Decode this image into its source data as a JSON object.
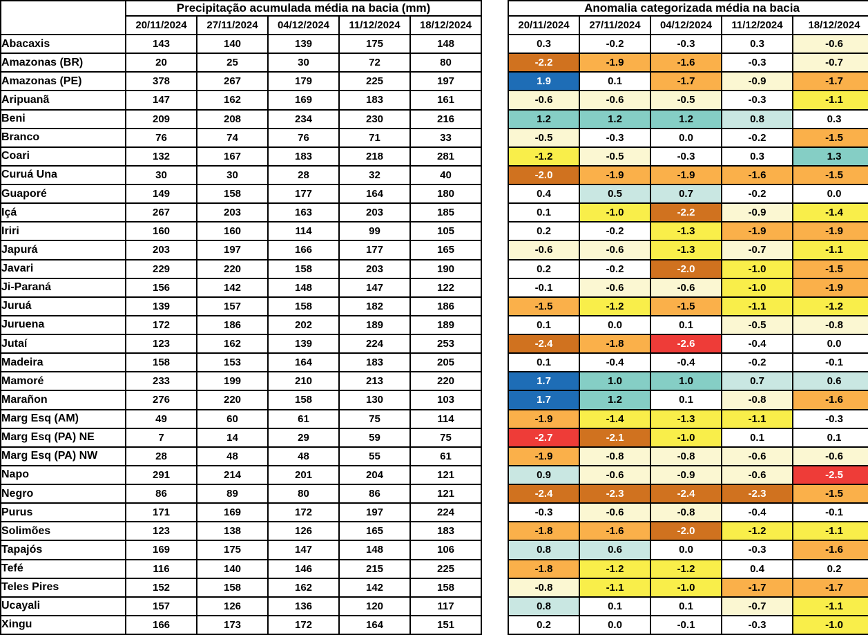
{
  "chart_data": {
    "type": "table",
    "tables": [
      {
        "id": "precipitation",
        "title": "Precipitação acumulada média na bacia (mm)",
        "columns": [
          "20/11/2024",
          "27/11/2024",
          "04/12/2024",
          "11/12/2024",
          "18/12/2024"
        ],
        "rows": [
          {
            "basin": "Abacaxis",
            "values": [
              143,
              140,
              139,
              175,
              148
            ]
          },
          {
            "basin": "Amazonas (BR)",
            "values": [
              20,
              25,
              30,
              72,
              80
            ]
          },
          {
            "basin": "Amazonas (PE)",
            "values": [
              378,
              267,
              179,
              225,
              197
            ]
          },
          {
            "basin": "Aripuanã",
            "values": [
              147,
              162,
              169,
              183,
              161
            ]
          },
          {
            "basin": "Beni",
            "values": [
              209,
              208,
              234,
              230,
              216
            ]
          },
          {
            "basin": "Branco",
            "values": [
              76,
              74,
              76,
              71,
              33
            ]
          },
          {
            "basin": "Coari",
            "values": [
              132,
              167,
              183,
              218,
              281
            ]
          },
          {
            "basin": "Curuá Una",
            "values": [
              30,
              30,
              28,
              32,
              40
            ]
          },
          {
            "basin": "Guaporé",
            "values": [
              149,
              158,
              177,
              164,
              180
            ]
          },
          {
            "basin": "Içá",
            "values": [
              267,
              203,
              163,
              203,
              185
            ]
          },
          {
            "basin": "Iriri",
            "values": [
              160,
              160,
              114,
              99,
              105
            ]
          },
          {
            "basin": "Japurá",
            "values": [
              203,
              197,
              166,
              177,
              165
            ]
          },
          {
            "basin": "Javari",
            "values": [
              229,
              220,
              158,
              203,
              190
            ]
          },
          {
            "basin": "Ji-Paraná",
            "values": [
              156,
              142,
              148,
              147,
              122
            ]
          },
          {
            "basin": "Juruá",
            "values": [
              139,
              157,
              158,
              182,
              186
            ]
          },
          {
            "basin": "Juruena",
            "values": [
              172,
              186,
              202,
              189,
              189
            ]
          },
          {
            "basin": "Jutaí",
            "values": [
              123,
              162,
              139,
              224,
              253
            ]
          },
          {
            "basin": "Madeira",
            "values": [
              158,
              153,
              164,
              183,
              205
            ]
          },
          {
            "basin": "Mamoré",
            "values": [
              233,
              199,
              210,
              213,
              220
            ]
          },
          {
            "basin": "Marañon",
            "values": [
              276,
              220,
              158,
              130,
              103
            ]
          },
          {
            "basin": "Marg Esq (AM)",
            "values": [
              49,
              60,
              61,
              75,
              114
            ]
          },
          {
            "basin": "Marg Esq (PA) NE",
            "values": [
              7,
              14,
              29,
              59,
              75
            ]
          },
          {
            "basin": "Marg Esq (PA) NW",
            "values": [
              28,
              48,
              48,
              55,
              61
            ]
          },
          {
            "basin": "Napo",
            "values": [
              291,
              214,
              201,
              204,
              121
            ]
          },
          {
            "basin": "Negro",
            "values": [
              86,
              89,
              80,
              86,
              121
            ]
          },
          {
            "basin": "Purus",
            "values": [
              171,
              169,
              172,
              197,
              224
            ]
          },
          {
            "basin": "Solimões",
            "values": [
              123,
              138,
              126,
              165,
              183
            ]
          },
          {
            "basin": "Tapajós",
            "values": [
              169,
              175,
              147,
              148,
              106
            ]
          },
          {
            "basin": "Tefé",
            "values": [
              116,
              140,
              146,
              215,
              225
            ]
          },
          {
            "basin": "Teles Pires",
            "values": [
              152,
              158,
              162,
              142,
              158
            ]
          },
          {
            "basin": "Ucayali",
            "values": [
              157,
              126,
              136,
              120,
              117
            ]
          },
          {
            "basin": "Xingu",
            "values": [
              166,
              173,
              172,
              164,
              151
            ]
          }
        ]
      },
      {
        "id": "anomaly",
        "title": "Anomalia categorizada média na bacia",
        "columns": [
          "20/11/2024",
          "27/11/2024",
          "04/12/2024",
          "11/12/2024",
          "18/12/2024"
        ],
        "rows": [
          {
            "basin": "Abacaxis",
            "values": [
              "0.3",
              "-0.2",
              "-0.3",
              "0.3",
              "-0.6"
            ]
          },
          {
            "basin": "Amazonas (BR)",
            "values": [
              "-2.2",
              "-1.9",
              "-1.6",
              "-0.3",
              "-0.7"
            ]
          },
          {
            "basin": "Amazonas (PE)",
            "values": [
              "1.9",
              "0.1",
              "-1.7",
              "-0.9",
              "-1.7"
            ]
          },
          {
            "basin": "Aripuanã",
            "values": [
              "-0.6",
              "-0.6",
              "-0.5",
              "-0.3",
              "-1.1"
            ]
          },
          {
            "basin": "Beni",
            "values": [
              "1.2",
              "1.2",
              "1.2",
              "0.8",
              "0.3"
            ]
          },
          {
            "basin": "Branco",
            "values": [
              "-0.5",
              "-0.3",
              "0.0",
              "-0.2",
              "-1.5"
            ]
          },
          {
            "basin": "Coari",
            "values": [
              "-1.2",
              "-0.5",
              "-0.3",
              "0.3",
              "1.3"
            ]
          },
          {
            "basin": "Curuá Una",
            "values": [
              "-2.0",
              "-1.9",
              "-1.9",
              "-1.6",
              "-1.5"
            ]
          },
          {
            "basin": "Guaporé",
            "values": [
              "0.4",
              "0.5",
              "0.7",
              "-0.2",
              "0.0"
            ]
          },
          {
            "basin": "Içá",
            "values": [
              "0.1",
              "-1.0",
              "-2.2",
              "-0.9",
              "-1.4"
            ]
          },
          {
            "basin": "Iriri",
            "values": [
              "0.2",
              "-0.2",
              "-1.3",
              "-1.9",
              "-1.9"
            ]
          },
          {
            "basin": "Japurá",
            "values": [
              "-0.6",
              "-0.6",
              "-1.3",
              "-0.7",
              "-1.1"
            ]
          },
          {
            "basin": "Javari",
            "values": [
              "0.2",
              "-0.2",
              "-2.0",
              "-1.0",
              "-1.5"
            ]
          },
          {
            "basin": "Ji-Paraná",
            "values": [
              "-0.1",
              "-0.6",
              "-0.6",
              "-1.0",
              "-1.9"
            ]
          },
          {
            "basin": "Juruá",
            "values": [
              "-1.5",
              "-1.2",
              "-1.5",
              "-1.1",
              "-1.2"
            ]
          },
          {
            "basin": "Juruena",
            "values": [
              "0.1",
              "0.0",
              "0.1",
              "-0.5",
              "-0.8"
            ]
          },
          {
            "basin": "Jutaí",
            "values": [
              "-2.4",
              "-1.8",
              "-2.6",
              "-0.4",
              "0.0"
            ]
          },
          {
            "basin": "Madeira",
            "values": [
              "0.1",
              "-0.4",
              "-0.4",
              "-0.2",
              "-0.1"
            ]
          },
          {
            "basin": "Mamoré",
            "values": [
              "1.7",
              "1.0",
              "1.0",
              "0.7",
              "0.6"
            ]
          },
          {
            "basin": "Marañon",
            "values": [
              "1.7",
              "1.2",
              "0.1",
              "-0.8",
              "-1.6"
            ]
          },
          {
            "basin": "Marg Esq (AM)",
            "values": [
              "-1.9",
              "-1.4",
              "-1.3",
              "-1.1",
              "-0.3"
            ]
          },
          {
            "basin": "Marg Esq (PA) NE",
            "values": [
              "-2.7",
              "-2.1",
              "-1.0",
              "0.1",
              "0.1"
            ]
          },
          {
            "basin": "Marg Esq (PA) NW",
            "values": [
              "-1.9",
              "-0.8",
              "-0.8",
              "-0.6",
              "-0.6"
            ]
          },
          {
            "basin": "Napo",
            "values": [
              "0.9",
              "-0.6",
              "-0.9",
              "-0.6",
              "-2.5"
            ]
          },
          {
            "basin": "Negro",
            "values": [
              "-2.4",
              "-2.3",
              "-2.4",
              "-2.3",
              "-1.5"
            ]
          },
          {
            "basin": "Purus",
            "values": [
              "-0.3",
              "-0.6",
              "-0.8",
              "-0.4",
              "-0.1"
            ]
          },
          {
            "basin": "Solimões",
            "values": [
              "-1.8",
              "-1.6",
              "-2.0",
              "-1.2",
              "-1.1"
            ]
          },
          {
            "basin": "Tapajós",
            "values": [
              "0.8",
              "0.6",
              "0.0",
              "-0.3",
              "-1.6"
            ]
          },
          {
            "basin": "Tefé",
            "values": [
              "-1.8",
              "-1.2",
              "-1.2",
              "0.4",
              "0.2"
            ]
          },
          {
            "basin": "Teles Pires",
            "values": [
              "-0.8",
              "-1.1",
              "-1.0",
              "-1.7",
              "-1.7"
            ]
          },
          {
            "basin": "Ucayali",
            "values": [
              "0.8",
              "0.1",
              "0.1",
              "-0.7",
              "-1.1"
            ]
          },
          {
            "basin": "Xingu",
            "values": [
              "0.2",
              "0.0",
              "-0.1",
              "-0.3",
              "-1.0"
            ]
          }
        ]
      }
    ],
    "color_scale": [
      {
        "category": "anomaly >= 1.5",
        "min": 1.5,
        "max": 99,
        "bg": "#1e6db6",
        "fg": "#ffffff"
      },
      {
        "category": "anomaly 1.0 to 1.4",
        "min": 0.95,
        "max": 1.45,
        "bg": "#85cec5",
        "fg": "#000000"
      },
      {
        "category": "anomaly 0.5 to 0.9",
        "min": 0.45,
        "max": 0.95,
        "bg": "#c9e7e2",
        "fg": "#000000"
      },
      {
        "category": "anomaly -0.4 to 0.4",
        "min": -0.45,
        "max": 0.45,
        "bg": "#ffffff",
        "fg": "#000000"
      },
      {
        "category": "anomaly -0.9 to -0.5",
        "min": -0.95,
        "max": -0.45,
        "bg": "#fbf7d2",
        "fg": "#000000"
      },
      {
        "category": "anomaly -1.4 to -1.0",
        "min": -1.45,
        "max": -0.95,
        "bg": "#f9ee4a",
        "fg": "#000000"
      },
      {
        "category": "anomaly -1.9 to -1.5",
        "min": -1.95,
        "max": -1.45,
        "bg": "#fab04a",
        "fg": "#000000"
      },
      {
        "category": "anomaly -2.4 to -2.0",
        "min": -2.45,
        "max": -1.95,
        "bg": "#d0721f",
        "fg": "#ffffff"
      },
      {
        "category": "anomaly <= -2.5",
        "min": -99,
        "max": -2.45,
        "bg": "#ee3c38",
        "fg": "#ffffff"
      }
    ],
    "layout": {
      "border_color": "#000000",
      "background": "#ffffff"
    }
  }
}
